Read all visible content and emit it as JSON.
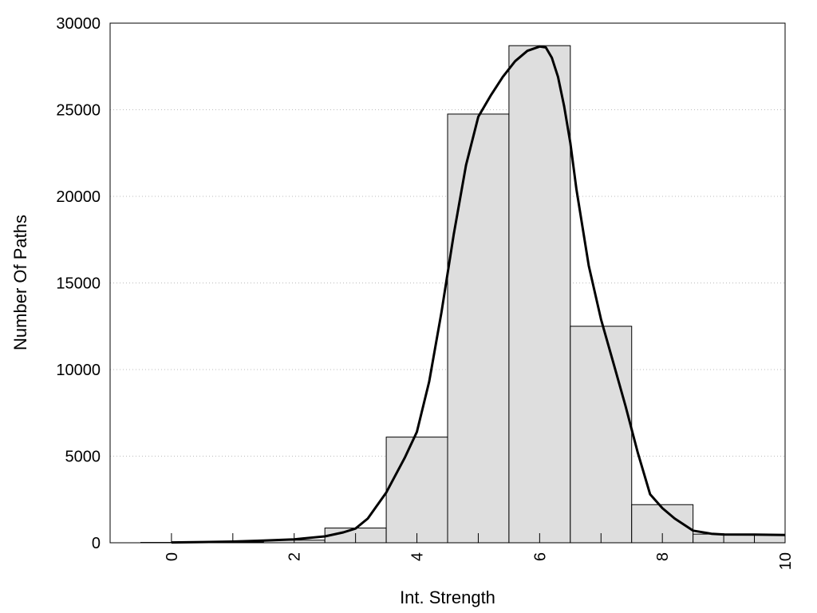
{
  "chart_data": {
    "type": "bar",
    "xlabel": "Int. Strength",
    "ylabel": "Number Of Paths",
    "xlim": [
      -1,
      10
    ],
    "ylim": [
      0,
      30000
    ],
    "x_ticks": [
      "0",
      "2",
      "4",
      "6",
      "8",
      "10"
    ],
    "y_ticks": [
      "0",
      "5000",
      "10000",
      "15000",
      "20000",
      "25000",
      "30000"
    ],
    "grid": "horizontal dotted",
    "bar_color": "#dedede",
    "bin_width": 1,
    "bins": [
      {
        "x": 0,
        "value": 20
      },
      {
        "x": 1,
        "value": 40
      },
      {
        "x": 2,
        "value": 150
      },
      {
        "x": 3,
        "value": 850
      },
      {
        "x": 4,
        "value": 6100
      },
      {
        "x": 5,
        "value": 24750
      },
      {
        "x": 6,
        "value": 28700
      },
      {
        "x": 7,
        "value": 12500
      },
      {
        "x": 8,
        "value": 2200
      },
      {
        "x": 9,
        "value": 500
      },
      {
        "x": 10,
        "value": 450
      }
    ],
    "fit_curve": {
      "type": "line",
      "x": [
        0,
        0.5,
        1,
        1.5,
        2,
        2.5,
        2.8,
        3,
        3.2,
        3.5,
        3.8,
        4,
        4.2,
        4.4,
        4.6,
        4.8,
        5,
        5.2,
        5.4,
        5.6,
        5.8,
        6,
        6.1,
        6.2,
        6.3,
        6.4,
        6.5,
        6.6,
        6.8,
        7,
        7.2,
        7.4,
        7.6,
        7.8,
        8,
        8.2,
        8.5,
        8.8,
        9,
        9.5,
        10
      ],
      "y": [
        20,
        40,
        70,
        130,
        200,
        370,
        600,
        820,
        1400,
        2900,
        4900,
        6400,
        9300,
        13300,
        17800,
        21800,
        24600,
        25800,
        26900,
        27800,
        28400,
        28650,
        28600,
        28000,
        26900,
        25200,
        23100,
        20400,
        16000,
        12900,
        10400,
        7900,
        5200,
        2800,
        2000,
        1400,
        700,
        520,
        480,
        470,
        450
      ]
    }
  }
}
